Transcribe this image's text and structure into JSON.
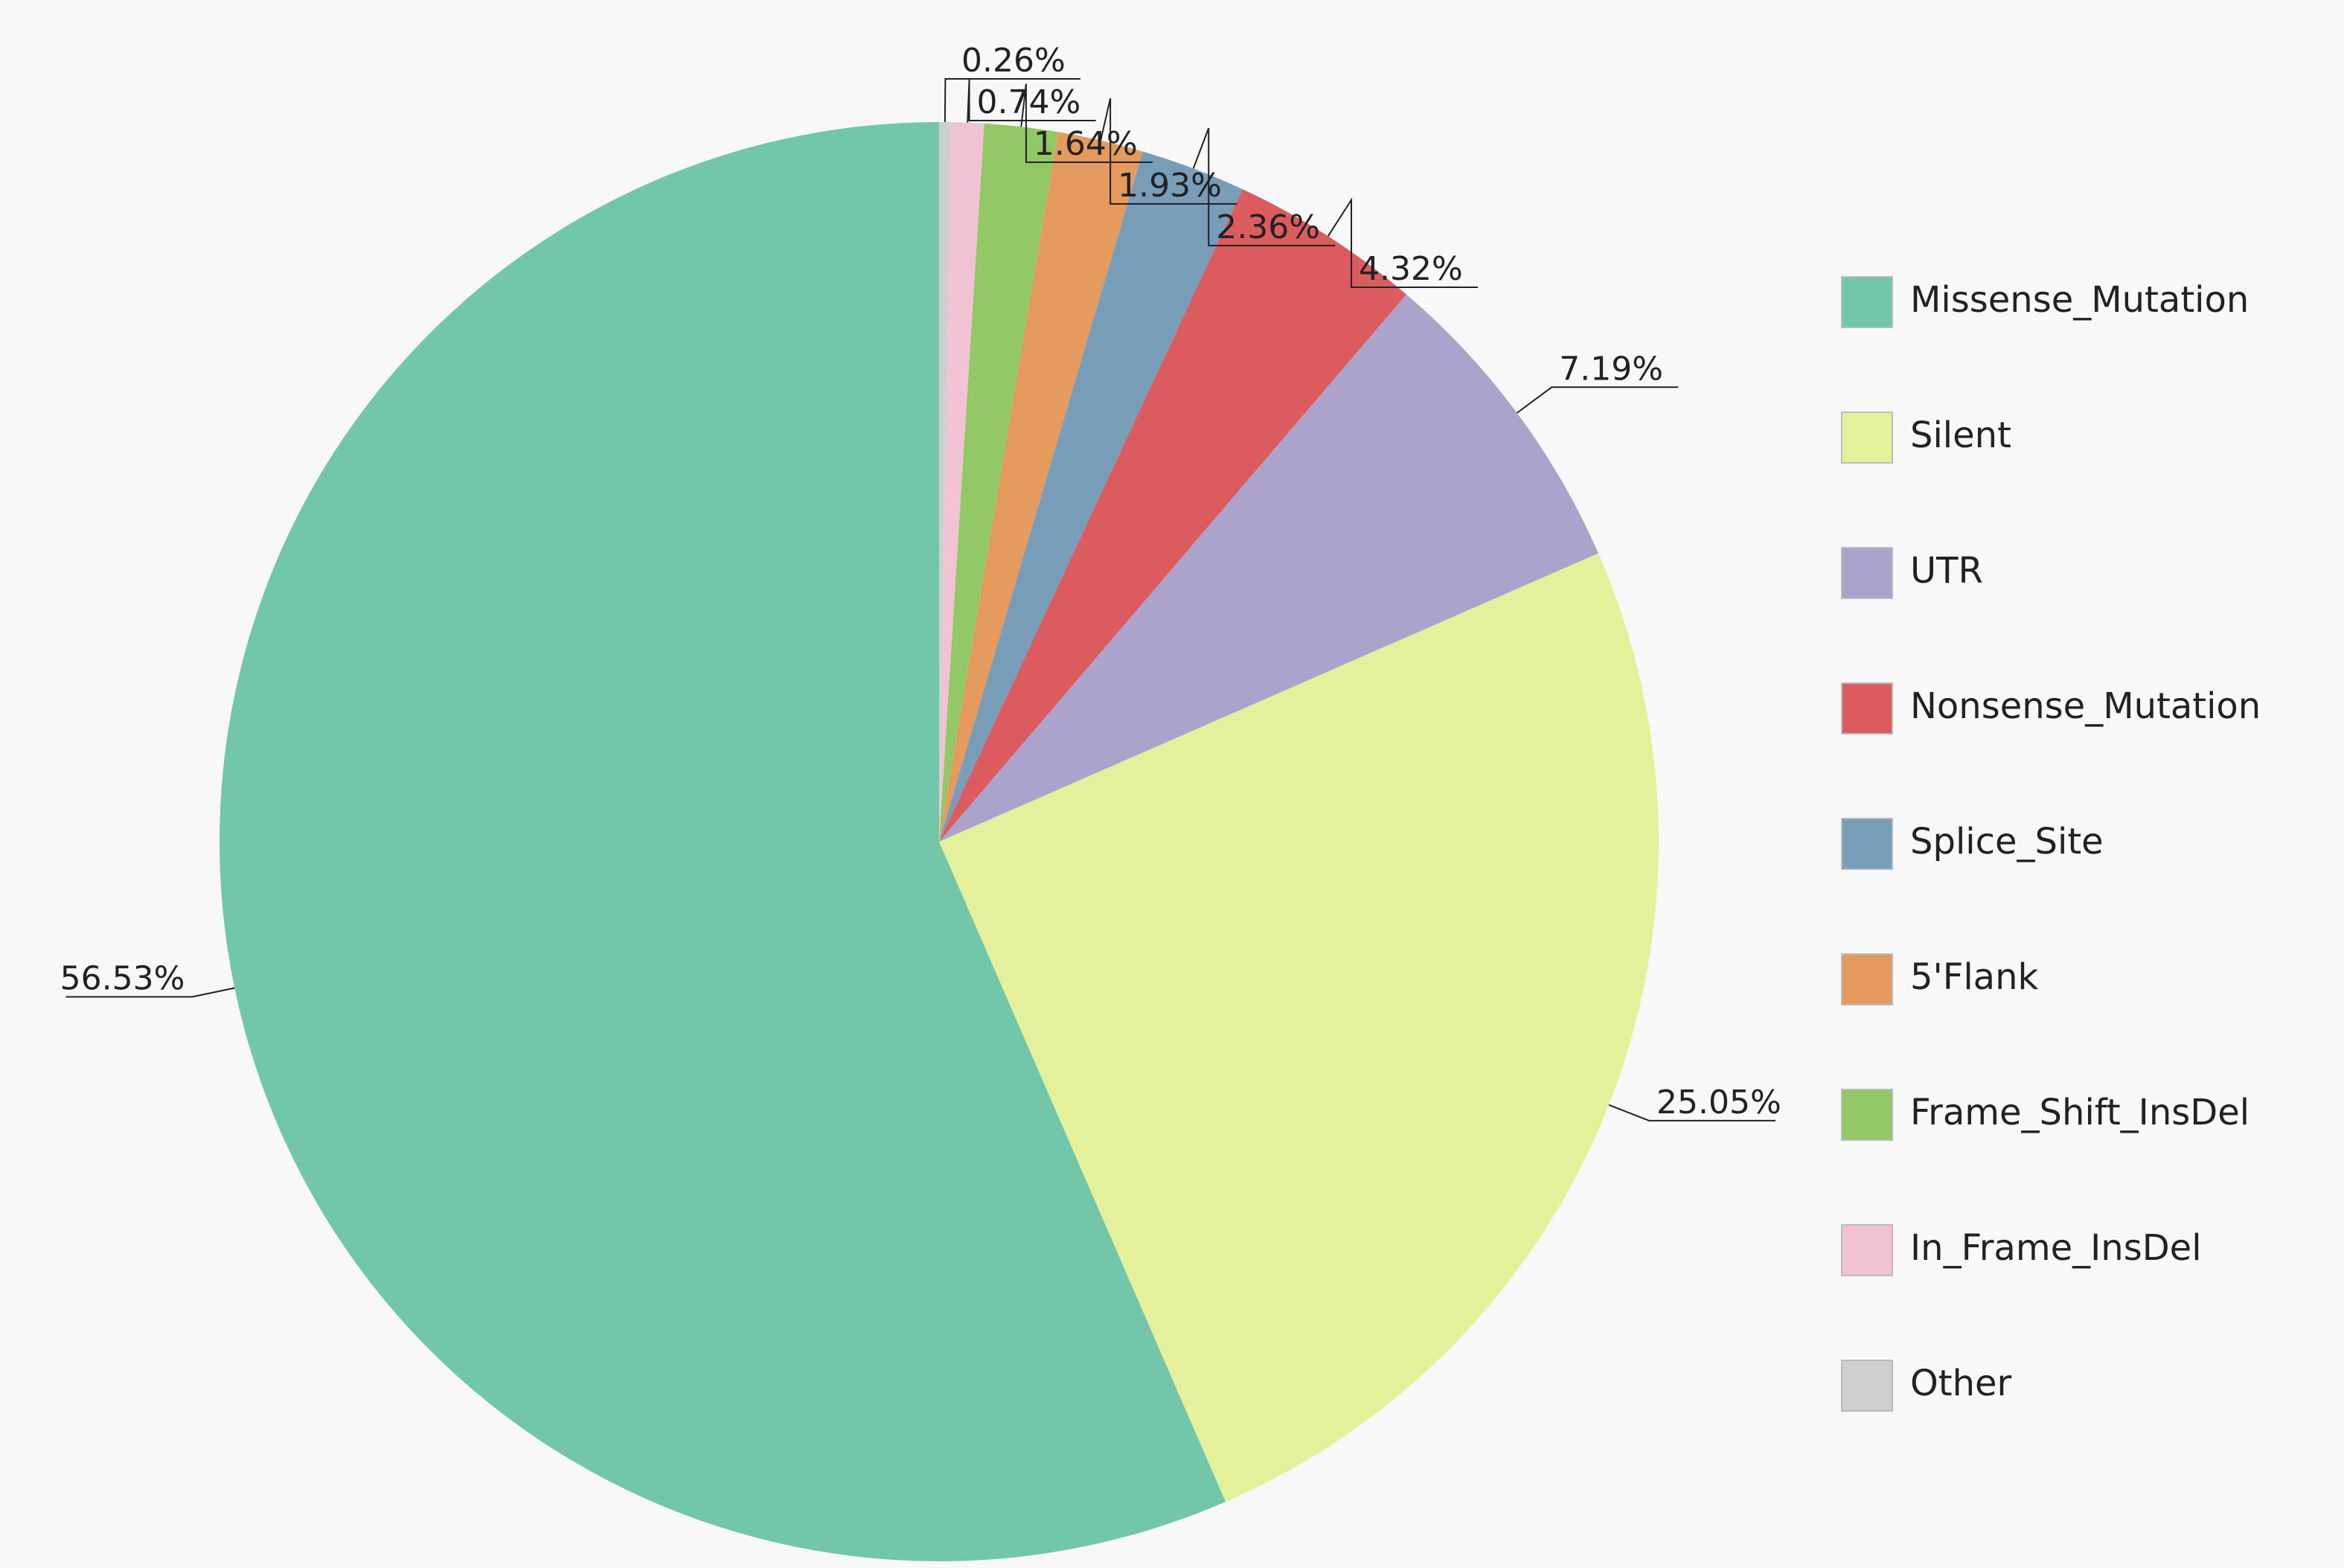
{
  "chart_data": {
    "type": "pie",
    "categories": [
      "Missense_Mutation",
      "Silent",
      "UTR",
      "Nonsense_Mutation",
      "Splice_Site",
      "5'Flank",
      "Frame_Shift_InsDel",
      "In_Frame_InsDel",
      "Other"
    ],
    "values": [
      56.53,
      25.05,
      7.19,
      4.32,
      2.36,
      1.93,
      1.64,
      0.74,
      0.26
    ],
    "value_labels": [
      "56.53%",
      "25.05%",
      "7.19%",
      "4.32%",
      "2.36%",
      "1.93%",
      "1.64%",
      "0.74%",
      "0.26%"
    ],
    "colors": [
      "#72c7aa",
      "#e4f19a",
      "#aba3cc",
      "#db5b5e",
      "#789db9",
      "#e59a5e",
      "#92c865",
      "#f0c2d3",
      "#cfcfcf"
    ],
    "legend": "right"
  }
}
